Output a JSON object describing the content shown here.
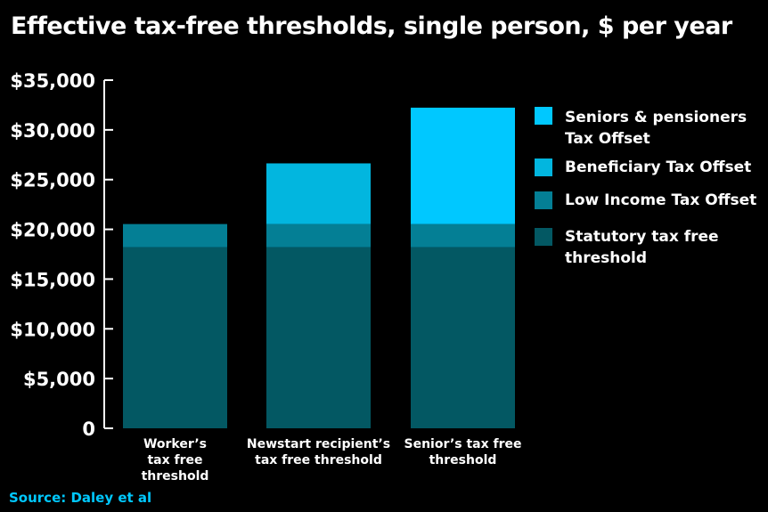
{
  "title": "Effective tax-free thresholds, single person, $ per year",
  "source": "Source: Daley et al",
  "colors": {
    "background": "#000000",
    "text": "#ffffff",
    "source": "#00c8ff"
  },
  "chart_data": {
    "type": "bar",
    "stacked": true,
    "title": "Effective tax-free thresholds, single person, $ per year",
    "xlabel": "",
    "ylabel": "",
    "ylim": [
      0,
      35000
    ],
    "yticks": [
      0,
      5000,
      10000,
      15000,
      20000,
      25000,
      30000,
      35000
    ],
    "ytick_labels": [
      "0",
      "$5,000",
      "$10,000",
      "$15,000",
      "$20,000",
      "$25,000",
      "$30,000",
      "$35,000"
    ],
    "grid": false,
    "legend_position": "right",
    "categories": [
      [
        "Worker’s",
        "tax free",
        "threshold"
      ],
      [
        "Newstart recipient’s",
        "tax free threshold"
      ],
      [
        "Senior’s tax free",
        "threshold"
      ]
    ],
    "series": [
      {
        "name": [
          "Statutory tax free",
          "threshold"
        ],
        "color": "#035863",
        "values": [
          18200,
          18200,
          18200
        ]
      },
      {
        "name": [
          "Low Income Tax Offset"
        ],
        "color": "#047f95",
        "values": [
          2333,
          2333,
          2333
        ]
      },
      {
        "name": [
          "Beneficiary Tax Offset"
        ],
        "color": "#02b6df",
        "values": [
          0,
          6100,
          0
        ]
      },
      {
        "name": [
          "Seniors & pensioners",
          "Tax Offset"
        ],
        "color": "#00c8ff",
        "values": [
          0,
          0,
          11700
        ]
      }
    ]
  }
}
